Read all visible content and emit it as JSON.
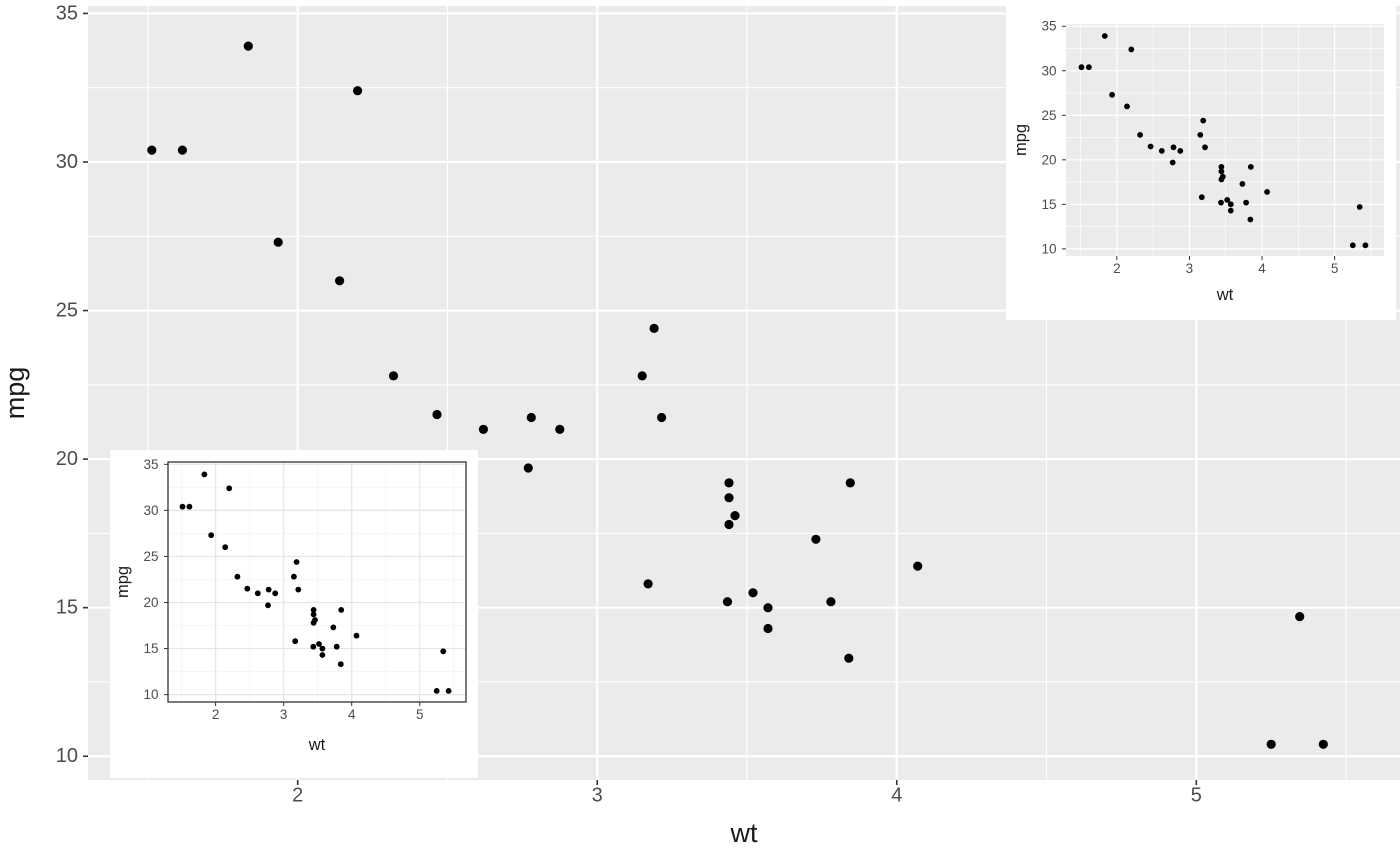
{
  "chart_data": {
    "type": "scatter",
    "title": "",
    "xlabel": "wt",
    "ylabel": "mpg",
    "x": [
      2.62,
      2.875,
      2.32,
      3.215,
      3.44,
      3.46,
      3.57,
      3.19,
      3.15,
      3.44,
      3.44,
      4.07,
      3.73,
      3.78,
      5.25,
      5.424,
      5.345,
      2.2,
      1.615,
      1.835,
      2.465,
      3.52,
      3.435,
      3.84,
      3.845,
      1.935,
      2.14,
      1.513,
      3.17,
      2.77,
      3.57,
      2.78
    ],
    "y": [
      21.0,
      21.0,
      22.8,
      21.4,
      18.7,
      18.1,
      14.3,
      24.4,
      22.8,
      19.2,
      17.8,
      16.4,
      17.3,
      15.2,
      10.4,
      10.4,
      14.7,
      32.4,
      30.4,
      33.9,
      21.5,
      15.5,
      15.2,
      13.3,
      19.2,
      27.3,
      26.0,
      30.4,
      15.8,
      19.7,
      15.0,
      21.4
    ],
    "xlim": [
      1.3,
      5.68
    ],
    "ylim": [
      9.2,
      35.25
    ],
    "x_ticks": [
      2,
      3,
      4,
      5
    ],
    "y_ticks": [
      10,
      15,
      20,
      25,
      30,
      35
    ],
    "x_minor_ticks": [
      1.5,
      2.5,
      3.5,
      4.5,
      5.5
    ],
    "y_minor_ticks": [
      12.5,
      17.5,
      22.5,
      27.5,
      32.5
    ],
    "grid": "major+minor",
    "legend": "none",
    "tick_color": "#333333",
    "tick_label_color": "#4D4D4D",
    "axis_title_color": "#1A1A1A",
    "views": [
      {
        "id": "main",
        "theme": "gray",
        "plot_bg": "#FFFFFF",
        "panel_bg": "#EBEBEB",
        "grid_major_color": "#FFFFFF",
        "grid_minor_color": "#FFFFFF",
        "panel_border": "none",
        "point_color": "#000000"
      },
      {
        "id": "inset-top-right",
        "theme": "gray",
        "plot_bg": "#FFFFFF",
        "panel_bg": "#EBEBEB",
        "grid_major_color": "#FFFFFF",
        "grid_minor_color": "#FFFFFF",
        "panel_border": "none",
        "point_color": "#000000"
      },
      {
        "id": "inset-bottom-left",
        "theme": "bw",
        "plot_bg": "#FFFFFF",
        "panel_bg": "#FFFFFF",
        "grid_major_color": "#E5E5E5",
        "grid_minor_color": "#F2F2F2",
        "panel_border": "#333333",
        "point_color": "#000000"
      }
    ]
  }
}
